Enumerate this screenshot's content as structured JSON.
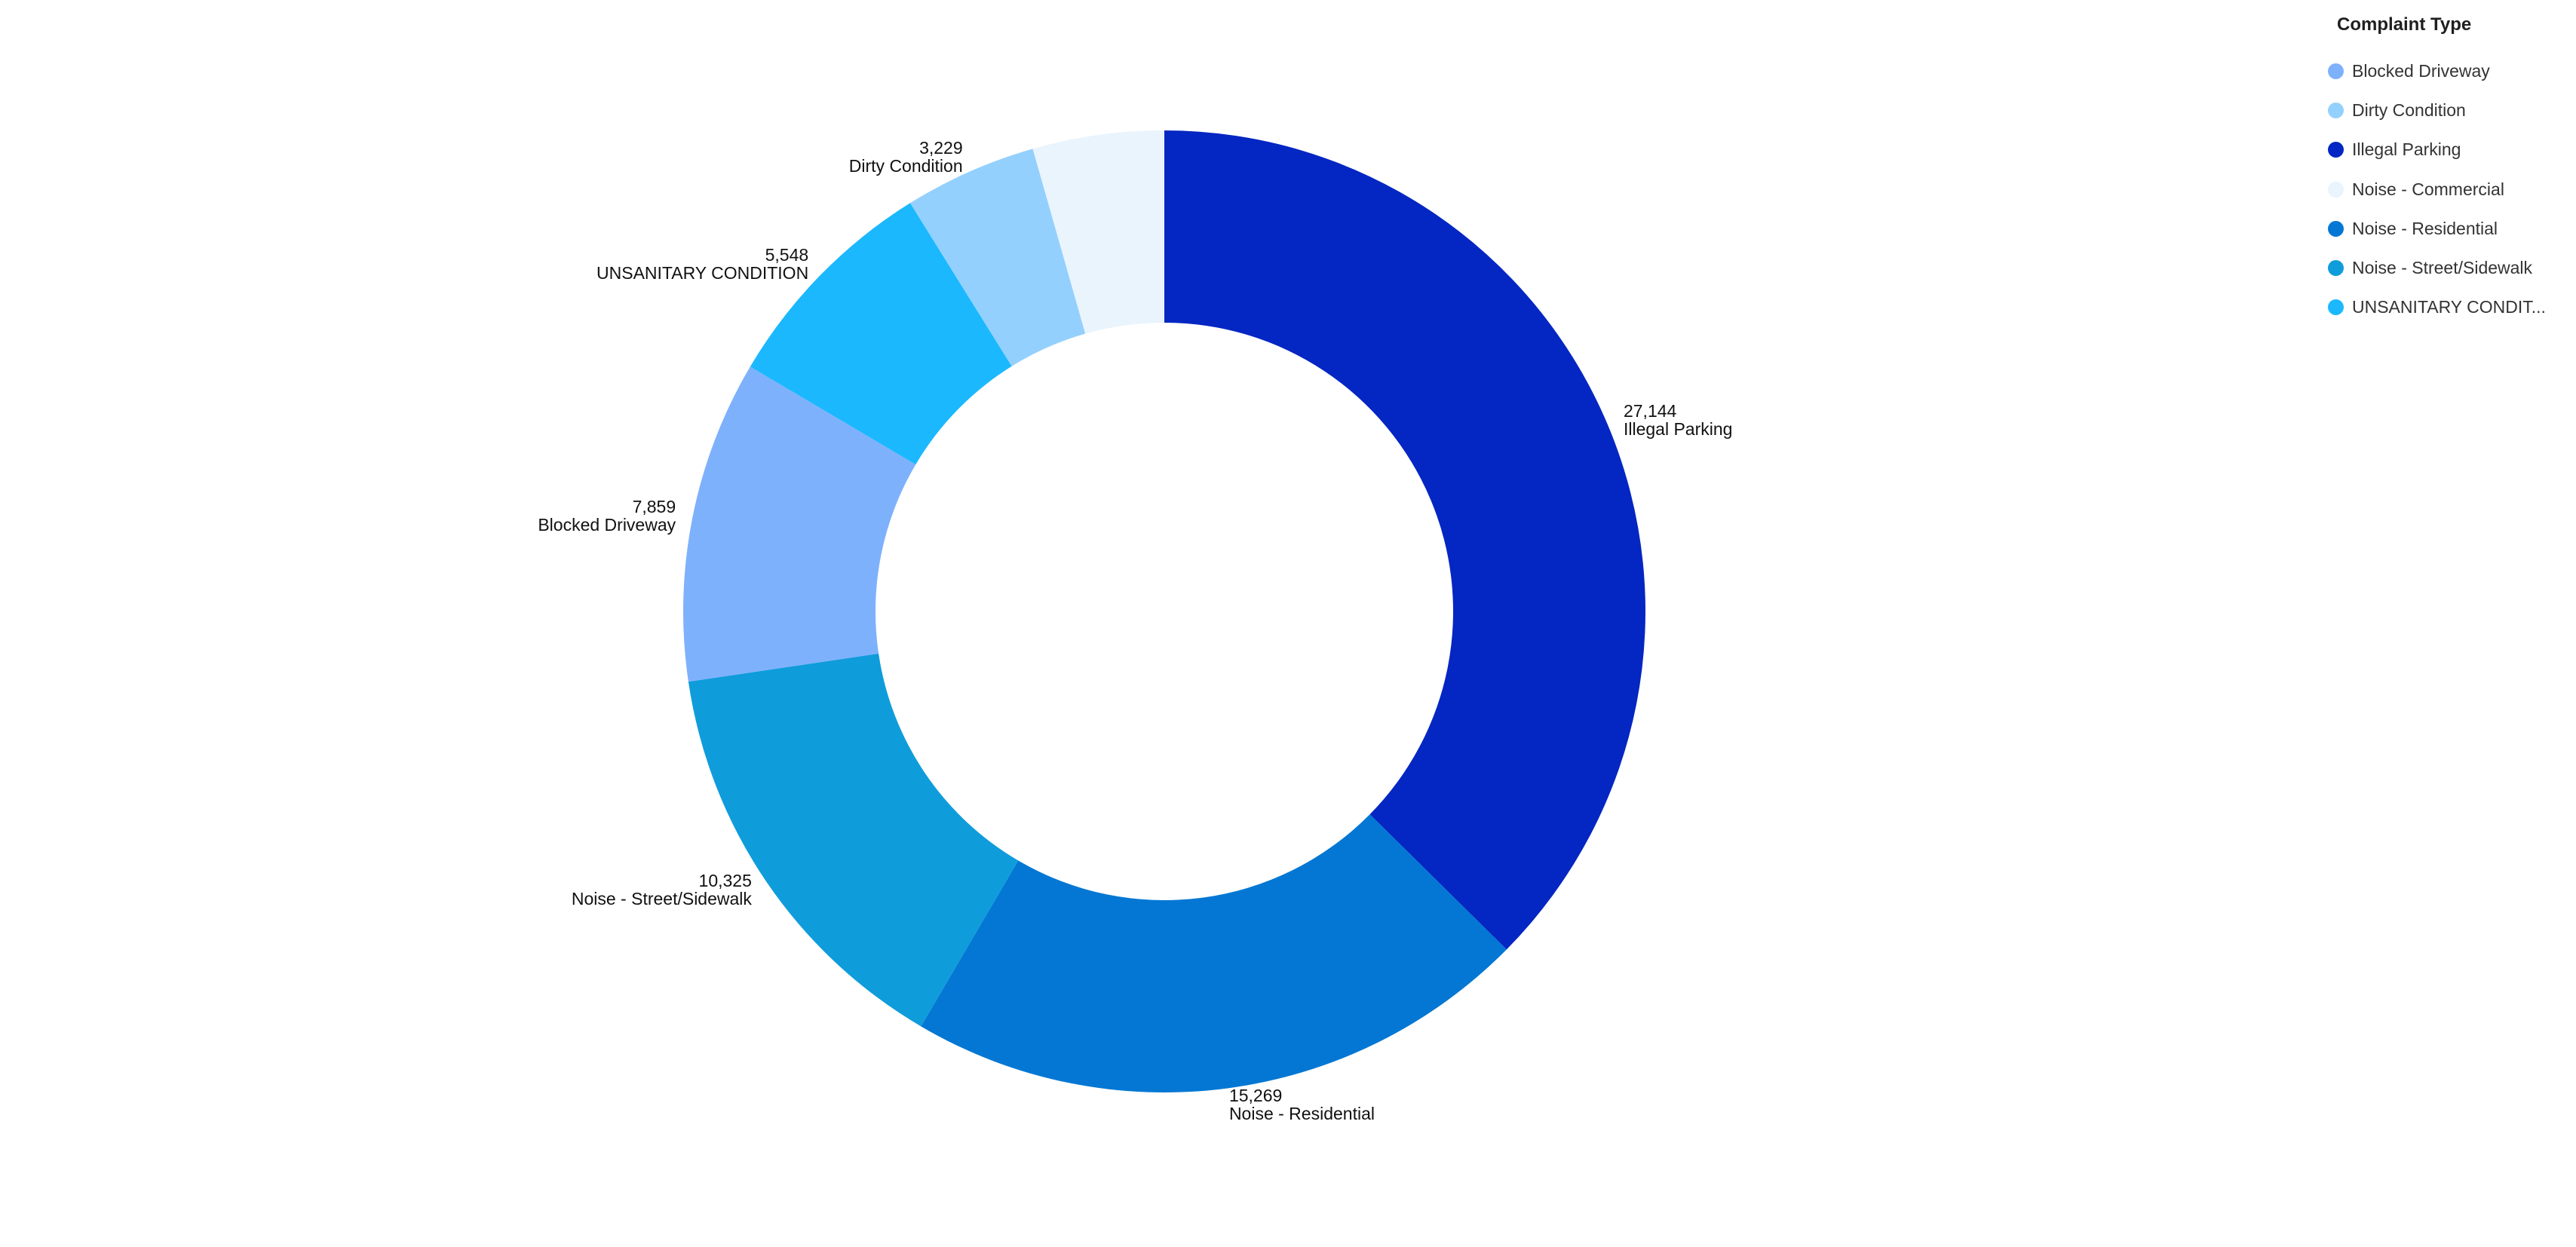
{
  "chart_data": {
    "type": "pie",
    "subtype": "donut",
    "legend_title": "Complaint Type",
    "legend_position": "top-right",
    "slices": [
      {
        "label": "Illegal Parking",
        "value": 27144,
        "value_label": "27,144",
        "color": "#0426c2"
      },
      {
        "label": "Noise - Residential",
        "value": 15269,
        "value_label": "15,269",
        "color": "#0377d3"
      },
      {
        "label": "Noise - Street/Sidewalk",
        "value": 10325,
        "value_label": "10,325",
        "color": "#0f9cdb"
      },
      {
        "label": "Blocked Driveway",
        "value": 7859,
        "value_label": "7,859",
        "color": "#7eb1fc"
      },
      {
        "label": "UNSANITARY CONDITION",
        "value": 5548,
        "value_label": "5,548",
        "color": "#1bb8fe"
      },
      {
        "label": "Dirty Condition",
        "value": 3229,
        "value_label": "3,229",
        "color": "#94d0fd"
      },
      {
        "label": "Noise - Commercial",
        "value": 3200,
        "value_label": "",
        "color": "#e9f4fd"
      }
    ],
    "legend_items": [
      {
        "label": "Blocked Driveway",
        "color": "#7eb1fc"
      },
      {
        "label": "Dirty Condition",
        "color": "#94d0fd"
      },
      {
        "label": "Illegal Parking",
        "color": "#0426c2"
      },
      {
        "label": "Noise - Commercial",
        "color": "#e9f4fd"
      },
      {
        "label": "Noise - Residential",
        "color": "#0377d3"
      },
      {
        "label": "Noise - Street/Sidewalk",
        "color": "#0f9cdb"
      },
      {
        "label": "UNSANITARY CONDIT...",
        "color": "#1bb8fe"
      }
    ]
  }
}
